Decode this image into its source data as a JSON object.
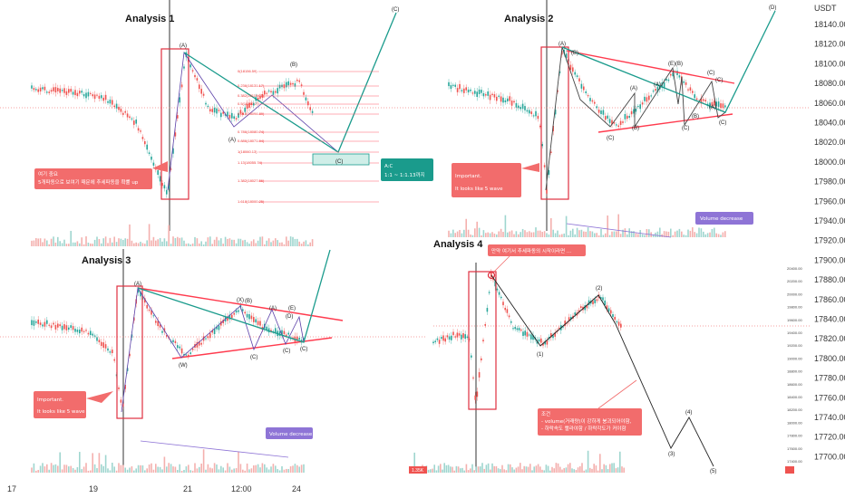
{
  "chart_data": {
    "type": "line",
    "currency_label": "USDT",
    "y_ticks": [
      "18140.00",
      "18120.00",
      "18100.00",
      "18080.00",
      "18060.00",
      "18040.00",
      "18020.00",
      "18000.00",
      "17980.00",
      "17960.00",
      "17940.00",
      "17920.00",
      "17900.00",
      "17880.00",
      "17860.00",
      "17840.00",
      "17820.00",
      "17800.00",
      "17780.00",
      "17760.00",
      "17740.00",
      "17720.00",
      "17700.00"
    ],
    "x_ticks": [
      "17",
      "19",
      "21",
      "12:00",
      "24"
    ],
    "colors": {
      "bear": "#ef5350",
      "bull": "#26a69a",
      "trend": "#ff3b4e",
      "impulse": "#5b3fa8",
      "teal": "#1a9b8c",
      "badge_purple": "#8e74d6",
      "note_red": "#f26c6c"
    },
    "panels": [
      {
        "title": "Analysis 1",
        "notes": [
          "여기 중요",
          "5개파동으로 보여기 때문에 추세파동을 확률 up"
        ],
        "callout": {
          "line1": "A:C",
          "line2": "1:1 ~ 1:1.13까지"
        },
        "labels": [
          "(A)",
          "(B)",
          "(C)",
          "(A)",
          "(C)"
        ],
        "fib": [
          "0(18156.59)",
          "0.236(18131.17)",
          "0.382(18119.07)",
          "0.5(18107.2)",
          "0.618(18094.89)",
          "0.786(18080.74)",
          "0.886(18071.94)",
          "1(18060.13)",
          "1.13(18055.74)",
          "1.382(18027.56)",
          "1.618(18000.25)"
        ]
      },
      {
        "title": "Analysis 2",
        "notes": [
          "Important.",
          "It looks like 5 wave"
        ],
        "badge": "Volume decrease",
        "labels": [
          "(A)",
          "(B)",
          "(A)",
          "(B)",
          "(C)",
          "(B)",
          "(A)",
          "(C)",
          "(C)",
          "(A)",
          "(B)",
          "(C)",
          "(C)",
          "(E)",
          "(D)"
        ]
      },
      {
        "title": "Analysis 3",
        "notes": [
          "Important.",
          "It looks like 5 wave"
        ],
        "badge": "Volume decrease",
        "labels": [
          "(A)",
          "(W)",
          "(X)",
          "(B)",
          "(C)",
          "(A)",
          "(C)",
          "(D)",
          "(E)",
          "(C)"
        ]
      },
      {
        "title": "Analysis 4",
        "notes": [
          "만약 여기서 추세파동의 시작이라면 ..."
        ],
        "conditions": [
          "조건",
          "- volume(거래량)이 강하게 붕괴되어야함,",
          "- 하락속도 빨라야함 / 하락각도가 커야함"
        ],
        "labels": [
          "(1)",
          "(2)",
          "(3)",
          "(4)",
          "(5)"
        ],
        "mini_ticks": [
          "20400.00",
          "20200.00",
          "20000.00",
          "19800.00",
          "19600.00",
          "19400.00",
          "19200.00",
          "19000.00",
          "18800.00",
          "18600.00",
          "18400.00",
          "18200.00",
          "18000.00",
          "17800.00",
          "17600.00",
          "17400.00"
        ],
        "price_tag": "1.35K"
      }
    ]
  }
}
